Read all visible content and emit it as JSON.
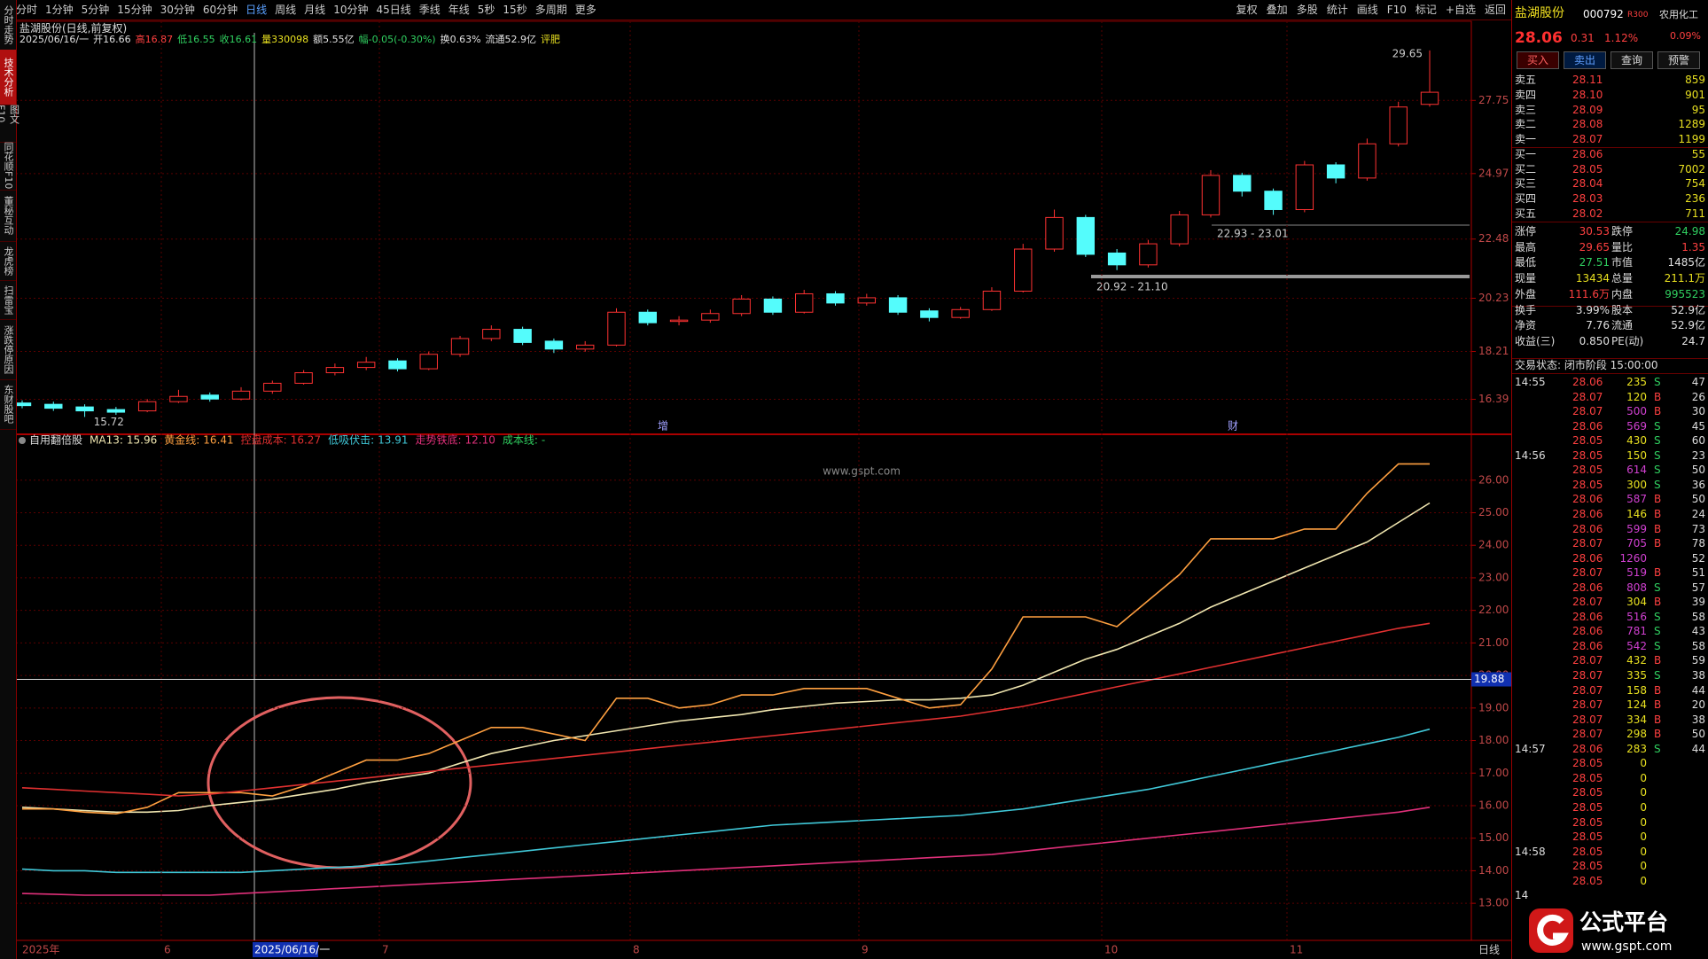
{
  "toolbar": {
    "left": [
      "分时",
      "1分钟",
      "5分钟",
      "15分钟",
      "30分钟",
      "60分钟",
      "日线",
      "周线",
      "月线",
      "10分钟",
      "45日线",
      "季线",
      "年线",
      "5秒",
      "15秒",
      "多周期",
      "更多"
    ],
    "active_index": 6,
    "right": [
      "复权",
      "叠加",
      "多股",
      "统计",
      "画线",
      "F10",
      "标记",
      "+自选",
      "返回"
    ]
  },
  "sidebar": {
    "items": [
      "分时走势",
      "技术分析",
      "图文F10",
      "同花顺F10",
      "董秘互动",
      "龙虎榜",
      "扫雷宝",
      "涨跌停原因",
      "东财股吧"
    ],
    "active_index": 1
  },
  "info_line": {
    "title": "盐湖股份(日线,前复权)",
    "items": [
      {
        "text": "2025/06/16/一",
        "color": "#e0e0e0"
      },
      {
        "text": "开16.66",
        "color": "#e0e0e0"
      },
      {
        "text": "高16.87",
        "color": "#ff4040"
      },
      {
        "text": "低16.55",
        "color": "#30d060"
      },
      {
        "text": "收16.61",
        "color": "#30d060"
      },
      {
        "text": "量330098",
        "color": "#e8e020"
      },
      {
        "text": "额5.55亿",
        "color": "#e0e0e0"
      },
      {
        "text": "幅-0.05(-0.30%)",
        "color": "#30d060"
      },
      {
        "text": "换0.63%",
        "color": "#e0e0e0"
      },
      {
        "text": "流通52.9亿",
        "color": "#e0e0e0"
      },
      {
        "text": "评肥",
        "color": "#e8e020"
      }
    ]
  },
  "chart_data": [
    {
      "type": "candlestick",
      "up_color": "#ff3232",
      "down_color": "#54fcfc",
      "grid": true,
      "open": [
        16.25,
        16.2,
        16.1,
        16.0,
        15.95,
        16.3,
        16.55,
        16.4,
        16.7,
        17.0,
        17.4,
        17.6,
        17.85,
        17.55,
        18.1,
        18.7,
        19.05,
        18.6,
        18.3,
        18.45,
        19.7,
        19.35,
        19.4,
        19.65,
        20.2,
        19.7,
        20.4,
        20.05,
        20.25,
        19.75,
        19.5,
        19.8,
        20.5,
        22.1,
        23.3,
        21.95,
        21.5,
        22.3,
        23.4,
        24.9,
        24.3,
        23.6,
        25.3,
        24.8,
        26.1,
        27.6
      ],
      "high": [
        16.35,
        16.3,
        16.2,
        16.1,
        16.4,
        16.75,
        16.65,
        16.85,
        17.1,
        17.5,
        17.75,
        18.0,
        17.95,
        18.2,
        18.8,
        19.2,
        19.15,
        18.7,
        18.6,
        19.85,
        19.8,
        19.55,
        19.8,
        20.35,
        20.3,
        20.55,
        20.5,
        20.4,
        20.35,
        19.85,
        19.9,
        20.65,
        22.3,
        23.6,
        23.4,
        22.1,
        22.45,
        23.55,
        25.1,
        25.0,
        24.4,
        25.45,
        25.4,
        26.3,
        27.7,
        29.65
      ],
      "low": [
        16.05,
        15.95,
        15.72,
        15.8,
        15.9,
        16.25,
        16.3,
        16.35,
        16.6,
        16.95,
        17.3,
        17.5,
        17.45,
        17.5,
        18.0,
        18.6,
        18.45,
        18.15,
        18.2,
        18.4,
        19.2,
        19.2,
        19.3,
        19.55,
        19.6,
        19.65,
        19.95,
        19.95,
        19.6,
        19.35,
        19.45,
        19.75,
        20.45,
        22.0,
        21.8,
        21.3,
        21.4,
        22.2,
        23.3,
        24.1,
        23.4,
        23.5,
        24.6,
        24.7,
        26.0,
        27.51
      ],
      "close": [
        16.15,
        16.05,
        15.95,
        15.9,
        16.3,
        16.5,
        16.4,
        16.7,
        17.0,
        17.4,
        17.6,
        17.8,
        17.55,
        18.1,
        18.7,
        19.05,
        18.55,
        18.3,
        18.45,
        19.7,
        19.3,
        19.4,
        19.65,
        20.2,
        19.7,
        20.4,
        20.05,
        20.25,
        19.7,
        19.5,
        19.8,
        20.5,
        22.1,
        23.3,
        21.9,
        21.5,
        22.3,
        23.4,
        24.9,
        24.3,
        23.6,
        25.3,
        24.8,
        26.1,
        27.5,
        28.06
      ],
      "ylim": [
        15.06,
        30.32
      ],
      "yticks": [
        16.39,
        18.21,
        20.23,
        22.48,
        24.97,
        27.75
      ],
      "annotations": {
        "high_label": "29.65",
        "low_label": "15.72",
        "zone_upper": "22.93 - 23.01",
        "zone_lower": "20.92 - 21.10",
        "markers": [
          "增",
          "财"
        ]
      }
    },
    {
      "type": "line",
      "legend_title": "自用翻倍股",
      "grid": true,
      "series": [
        {
          "name": "MA13:",
          "value_label": "15.96",
          "color": "#f0e6b0",
          "values": [
            15.95,
            15.9,
            15.85,
            15.8,
            15.8,
            15.85,
            16.0,
            16.1,
            16.2,
            16.35,
            16.5,
            16.7,
            16.85,
            17.0,
            17.3,
            17.6,
            17.8,
            18.0,
            18.15,
            18.3,
            18.45,
            18.6,
            18.7,
            18.8,
            18.95,
            19.05,
            19.15,
            19.2,
            19.25,
            19.25,
            19.3,
            19.4,
            19.7,
            20.1,
            20.5,
            20.8,
            21.2,
            21.6,
            22.1,
            22.5,
            22.9,
            23.3,
            23.7,
            24.1,
            24.7,
            25.3
          ]
        },
        {
          "name": "黄金线:",
          "value_label": "16.41",
          "color": "#ffa040",
          "values": [
            15.9,
            15.9,
            15.8,
            15.75,
            15.95,
            16.4,
            16.4,
            16.4,
            16.3,
            16.6,
            17.0,
            17.4,
            17.4,
            17.6,
            18.0,
            18.4,
            18.4,
            18.2,
            18.0,
            19.3,
            19.3,
            19.0,
            19.1,
            19.4,
            19.4,
            19.6,
            19.6,
            19.6,
            19.3,
            19.0,
            19.1,
            20.2,
            21.8,
            21.8,
            21.8,
            21.5,
            22.3,
            23.1,
            24.2,
            24.2,
            24.2,
            24.5,
            24.5,
            25.6,
            26.5,
            26.5
          ]
        },
        {
          "name": "控盘成本:",
          "value_label": "16.27",
          "color": "#e03030",
          "values": [
            16.55,
            16.5,
            16.45,
            16.4,
            16.35,
            16.3,
            16.35,
            16.45,
            16.55,
            16.65,
            16.75,
            16.85,
            16.95,
            17.05,
            17.15,
            17.25,
            17.35,
            17.45,
            17.55,
            17.65,
            17.75,
            17.85,
            17.95,
            18.05,
            18.15,
            18.25,
            18.35,
            18.45,
            18.55,
            18.65,
            18.75,
            18.9,
            19.05,
            19.25,
            19.45,
            19.65,
            19.85,
            20.05,
            20.25,
            20.45,
            20.65,
            20.85,
            21.05,
            21.25,
            21.45,
            21.6
          ]
        },
        {
          "name": "低吸伏击:",
          "value_label": "13.91",
          "color": "#40c8d8",
          "values": [
            14.05,
            14.0,
            14.0,
            13.95,
            13.95,
            13.95,
            13.95,
            13.95,
            14.0,
            14.05,
            14.1,
            14.15,
            14.2,
            14.3,
            14.4,
            14.5,
            14.6,
            14.7,
            14.8,
            14.9,
            15.0,
            15.1,
            15.2,
            15.3,
            15.4,
            15.45,
            15.5,
            15.55,
            15.6,
            15.65,
            15.7,
            15.8,
            15.9,
            16.05,
            16.2,
            16.35,
            16.5,
            16.7,
            16.9,
            17.1,
            17.3,
            17.5,
            17.7,
            17.9,
            18.1,
            18.35
          ]
        },
        {
          "name": "走势铁底:",
          "value_label": "12.10",
          "color": "#e0307a",
          "values": [
            13.3,
            13.28,
            13.25,
            13.25,
            13.25,
            13.25,
            13.25,
            13.3,
            13.35,
            13.4,
            13.45,
            13.5,
            13.55,
            13.6,
            13.65,
            13.7,
            13.75,
            13.8,
            13.85,
            13.9,
            13.95,
            14.0,
            14.05,
            14.1,
            14.15,
            14.2,
            14.25,
            14.3,
            14.35,
            14.4,
            14.45,
            14.5,
            14.6,
            14.7,
            14.8,
            14.9,
            15.0,
            15.1,
            15.2,
            15.3,
            15.4,
            15.5,
            15.6,
            15.7,
            15.8,
            15.95
          ]
        }
      ],
      "extra_legend": {
        "name": "成本线:",
        "value_label": "-",
        "color": "#30d060"
      },
      "ylim": [
        11.86,
        27.41
      ],
      "yticks": [
        {
          "value": 13,
          "label": "13.00"
        },
        {
          "value": 14,
          "label": "14.00"
        },
        {
          "value": 15,
          "label": "15.00"
        },
        {
          "value": 16,
          "label": "16.00"
        },
        {
          "value": 17,
          "label": "17.00"
        },
        {
          "value": 18,
          "label": "18.00"
        },
        {
          "value": 19,
          "label": "19.00"
        },
        {
          "value": 20,
          "label": "20.00"
        },
        {
          "value": 21,
          "label": "21.00"
        },
        {
          "value": 22,
          "label": "22.00"
        },
        {
          "value": 23,
          "label": "23.00"
        },
        {
          "value": 24,
          "label": "24.00"
        },
        {
          "value": 25,
          "label": "25.00"
        },
        {
          "value": 26,
          "label": "26.00"
        }
      ],
      "hline": 19.88,
      "watermark": "www.gspt.com"
    }
  ],
  "date_axis": {
    "labels": [
      "2025年",
      "6",
      "2025/06/16/一",
      "7",
      "8",
      "9",
      "10",
      "11"
    ],
    "highlight_index": 2,
    "period": "日线"
  },
  "quote_panel": {
    "name": "盐湖股份",
    "code": "000792",
    "tag": "R300",
    "sector": "农用化工",
    "sector_change": "0.09%",
    "price": "28.06",
    "change": "0.31",
    "change_pct": "1.12%",
    "buttons": [
      "买入",
      "卖出",
      "查询",
      "预警"
    ],
    "order_book": [
      [
        "卖五",
        "28.11",
        "859"
      ],
      [
        "卖四",
        "28.10",
        "901"
      ],
      [
        "卖三",
        "28.09",
        "95"
      ],
      [
        "卖二",
        "28.08",
        "1289"
      ],
      [
        "卖一",
        "28.07",
        "1199"
      ],
      [
        "买一",
        "28.06",
        "55"
      ],
      [
        "买二",
        "28.05",
        "7002"
      ],
      [
        "买三",
        "28.04",
        "754"
      ],
      [
        "买四",
        "28.03",
        "236"
      ],
      [
        "买五",
        "28.02",
        "711"
      ]
    ],
    "stats": [
      [
        {
          "label": "涨停",
          "value": "30.53",
          "color": "#ff4040"
        },
        {
          "label": "跌停",
          "value": "24.98",
          "color": "#30d060"
        }
      ],
      [
        {
          "label": "最高",
          "value": "29.65",
          "color": "#ff4040"
        },
        {
          "label": "量比",
          "value": "1.35",
          "color": "#ff4040"
        }
      ],
      [
        {
          "label": "最低",
          "value": "27.51",
          "color": "#30d060"
        },
        {
          "label": "市值",
          "value": "1485亿",
          "color": "#e0e0e0"
        }
      ],
      [
        {
          "label": "现量",
          "value": "13434",
          "color": "#e8e020"
        },
        {
          "label": "总量",
          "value": "211.1万",
          "color": "#e8e020"
        }
      ],
      [
        {
          "label": "外盘",
          "value": "111.6万",
          "color": "#ff4040"
        },
        {
          "label": "内盘",
          "value": "995523",
          "color": "#30d060"
        }
      ],
      [
        {
          "label": "换手",
          "value": "3.99%",
          "color": "#e0e0e0"
        },
        {
          "label": "股本",
          "value": "52.9亿",
          "color": "#e0e0e0"
        }
      ],
      [
        {
          "label": "净资",
          "value": "7.76",
          "color": "#e0e0e0"
        },
        {
          "label": "流通",
          "value": "52.9亿",
          "color": "#e0e0e0"
        }
      ],
      [
        {
          "label": "收益(三)",
          "value": "0.850",
          "color": "#e0e0e0"
        },
        {
          "label": "PE(动)",
          "value": "24.7",
          "color": "#e0e0e0"
        }
      ]
    ],
    "status": "交易状态: 闭市阶段 15:00:00"
  },
  "ticks_list": [
    {
      "time": "14:55",
      "rows": [
        [
          "28.06",
          235,
          "S",
          47
        ],
        [
          "28.07",
          120,
          "B",
          26
        ],
        [
          "28.07",
          500,
          "B",
          30
        ],
        [
          "28.06",
          569,
          "S",
          45
        ],
        [
          "28.05",
          430,
          "S",
          60
        ]
      ]
    },
    {
      "time": "14:56",
      "rows": [
        [
          "28.05",
          150,
          "S",
          23
        ],
        [
          "28.05",
          614,
          "S",
          50
        ],
        [
          "28.05",
          300,
          "S",
          36
        ],
        [
          "28.06",
          587,
          "B",
          50
        ],
        [
          "28.06",
          146,
          "B",
          24
        ],
        [
          "28.06",
          599,
          "B",
          73
        ],
        [
          "28.07",
          705,
          "B",
          78
        ],
        [
          "28.06",
          1260,
          null,
          52
        ],
        [
          "28.07",
          519,
          "B",
          51
        ],
        [
          "28.06",
          808,
          "S",
          57
        ],
        [
          "28.07",
          304,
          "B",
          39
        ],
        [
          "28.06",
          516,
          "S",
          58
        ],
        [
          "28.06",
          781,
          "S",
          43
        ],
        [
          "28.06",
          542,
          "S",
          58
        ],
        [
          "28.07",
          432,
          "B",
          59
        ],
        [
          "28.07",
          335,
          "S",
          38
        ],
        [
          "28.07",
          158,
          "B",
          44
        ],
        [
          "28.07",
          124,
          "B",
          20
        ],
        [
          "28.07",
          334,
          "B",
          38
        ],
        [
          "28.07",
          298,
          "B",
          50
        ]
      ]
    },
    {
      "time": "14:57",
      "rows": [
        [
          "28.06",
          283,
          "S",
          44
        ],
        [
          "28.05",
          0,
          null,
          null
        ],
        [
          "28.05",
          0,
          null,
          null
        ],
        [
          "28.05",
          0,
          null,
          null
        ],
        [
          "28.05",
          0,
          null,
          null
        ],
        [
          "28.05",
          0,
          null,
          null
        ],
        [
          "28.05",
          0,
          null,
          null
        ]
      ]
    },
    {
      "time": "14:58",
      "rows": [
        [
          "28.05",
          0,
          null,
          null
        ],
        [
          "28.05",
          0,
          null,
          null
        ],
        [
          "28.05",
          0,
          null,
          null
        ]
      ]
    },
    {
      "time": "14",
      "rows": []
    }
  ],
  "logo": {
    "name": "公式平台",
    "url": "www.gspt.com"
  }
}
